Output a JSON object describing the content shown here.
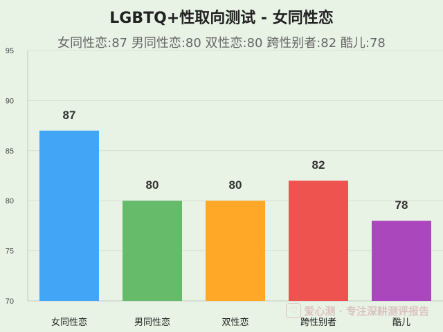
{
  "chart_data": {
    "type": "bar",
    "title": "LGBTQ+性取向测试 - 女同性恋",
    "subtitle": "女同性恋:87 男同性恋:80 双性恋:80 跨性别者:82 酷儿:78",
    "categories": [
      "女同性恋",
      "男同性恋",
      "双性恋",
      "跨性别者",
      "酷儿"
    ],
    "values": [
      87,
      80,
      80,
      82,
      78
    ],
    "colors": [
      "#42a5f5",
      "#66bb6a",
      "#ffa726",
      "#ef5350",
      "#ab47bc"
    ],
    "ylim": [
      70,
      95
    ],
    "yticks": [
      70,
      75,
      80,
      85,
      90,
      95
    ],
    "grid": true,
    "xlabel": "",
    "ylabel": ""
  },
  "watermark": {
    "icon": "heart-icon",
    "text": "爱心测 · 专注深耕测评报告"
  }
}
